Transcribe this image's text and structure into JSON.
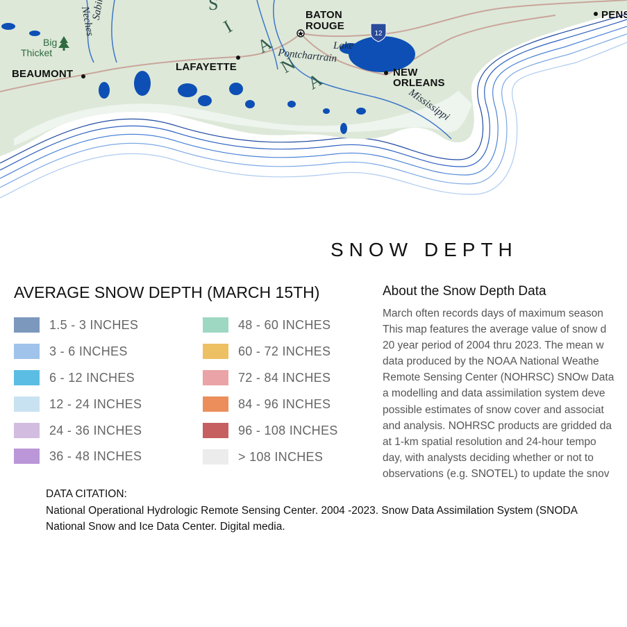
{
  "map": {
    "cities": [
      {
        "name": "BATON",
        "id": "baton"
      },
      {
        "name": "ROUGE",
        "id": "rouge"
      },
      {
        "name": "PENS",
        "id": "pens"
      },
      {
        "name": "BEAUMONT",
        "id": "beaumont"
      },
      {
        "name": "LAFAYETTE",
        "id": "lafayette"
      },
      {
        "name": "NEW",
        "id": "new"
      },
      {
        "name": "ORLEANS",
        "id": "orleans"
      }
    ],
    "water_labels": {
      "lake_1": "Lake",
      "lake_2": "Pontchartrain",
      "river_neches": "Neches",
      "river_sabine": "Sabine",
      "river_mississippi": "Mississippi"
    },
    "state_letters": [
      "S",
      "I",
      "A",
      "N",
      "A"
    ],
    "park": {
      "line1": "Big",
      "line2": "Thicket"
    },
    "highway_shield": "12",
    "colors": {
      "land": "#dde8d8",
      "water": "#0d4fb5",
      "road": "#c9a59b",
      "coast_lines": "#1f4aa0"
    }
  },
  "title": "SNOW DEPTH",
  "legend": {
    "title": "AVERAGE SNOW DEPTH (MARCH 15TH)",
    "items": [
      {
        "label": "1.5 - 3 INCHES",
        "color": "#7c98bd"
      },
      {
        "label": "3 - 6 INCHES",
        "color": "#9fc3ea"
      },
      {
        "label": "6 - 12 INCHES",
        "color": "#5bbde3"
      },
      {
        "label": "12 - 24 INCHES",
        "color": "#c9e2f2"
      },
      {
        "label": "24 - 36 INCHES",
        "color": "#d2bde0"
      },
      {
        "label": "36 - 48 INCHES",
        "color": "#bb96d8"
      },
      {
        "label": "48 - 60 INCHES",
        "color": "#9fd8c2"
      },
      {
        "label": "60 - 72 INCHES",
        "color": "#eec064"
      },
      {
        "label": "72 - 84 INCHES",
        "color": "#eaa3a6"
      },
      {
        "label": "84 - 96 INCHES",
        "color": "#eb8e5c"
      },
      {
        "label": "96 - 108 INCHES",
        "color": "#c55f60"
      },
      {
        "label": "> 108 INCHES",
        "color": "#ececec"
      }
    ]
  },
  "about": {
    "heading": "About the Snow Depth Data",
    "lines": [
      "March often records days of maximum season",
      "This map features the average value of snow d",
      "20 year period of 2004 thru 2023. The mean w",
      "data produced by the NOAA National Weathe",
      "Remote Sensing Center (NOHRSC) SNOw Data",
      "a modelling and data assimilation system deve",
      "possible estimates of snow cover and associat",
      "and analysis. NOHRSC products are gridded da",
      "at 1-km spatial resolution and 24-hour tempo",
      "day, with analysts deciding whether or not to",
      "observations (e.g. SNOTEL) to update the snov"
    ]
  },
  "citation": {
    "label": "DATA CITATION:",
    "lines": [
      "National Operational Hydrologic Remote Sensing Center. 2004 -2023. Snow Data Assimilation System (SNODA",
      "National Snow and Ice Data Center. Digital media."
    ]
  }
}
